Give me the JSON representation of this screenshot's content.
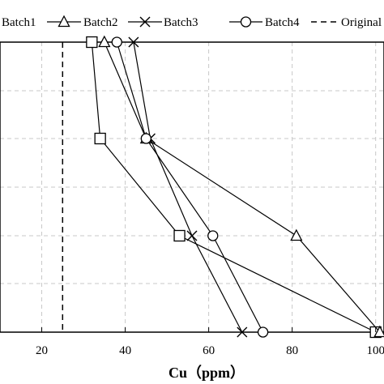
{
  "chart_data": {
    "type": "line",
    "title": "",
    "xlabel": "Cu（ppm）",
    "ylabel": "",
    "xlim": [
      10,
      102
    ],
    "x_ticks": [
      "20",
      "40",
      "60",
      "80",
      "100"
    ],
    "x_tick_values": [
      20,
      40,
      60,
      80,
      100
    ],
    "y_levels": [
      0,
      1,
      2,
      3
    ],
    "grid": true,
    "legend_position": "top",
    "series": [
      {
        "name": "Batch1",
        "marker": "square",
        "x": [
          32,
          34,
          53,
          100
        ]
      },
      {
        "name": "Batch2",
        "marker": "triangle",
        "x": [
          35,
          45,
          81,
          101
        ]
      },
      {
        "name": "Batch3",
        "marker": "x",
        "x": [
          42,
          46,
          56,
          68
        ]
      },
      {
        "name": "Batch4",
        "marker": "circle",
        "x": [
          38,
          45,
          61,
          73
        ]
      },
      {
        "name": "Original",
        "marker": "dashed-line",
        "x_constant": 25
      }
    ],
    "legend": [
      "Batch1",
      "Batch2",
      "Batch3",
      "Batch4",
      "Original"
    ]
  }
}
